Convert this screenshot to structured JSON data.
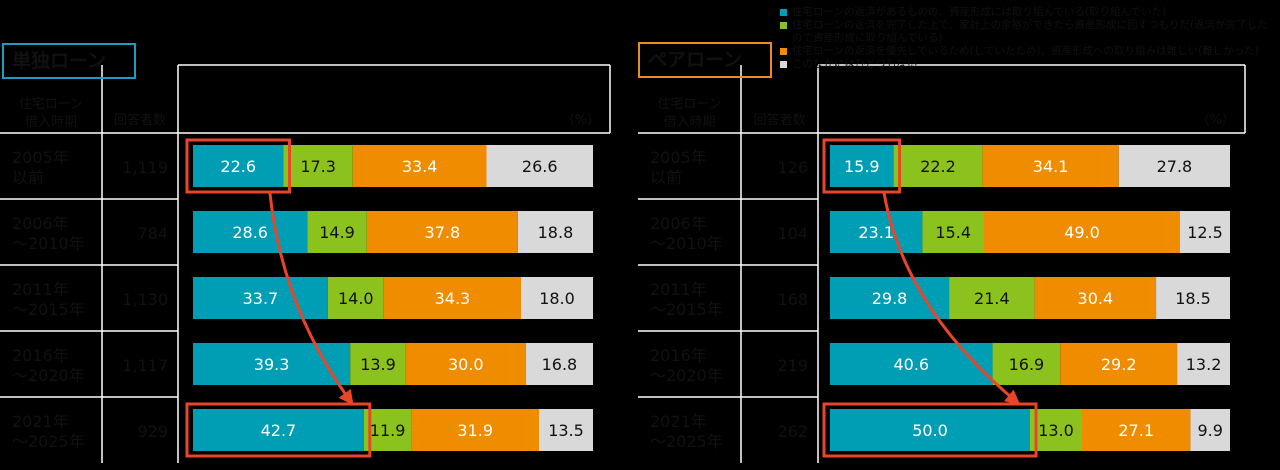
{
  "colors": {
    "s1": "#009eb5",
    "s2": "#8cc21e",
    "s3": "#f08c00",
    "s4": "#d9d9d9",
    "highlight": "#e8452a",
    "label_text": "#111111",
    "table_line": "#ffffff"
  },
  "legend": {
    "items": [
      "住宅ローンの返済があるものの、資産形成には取り組んでいる(取り組んでいた)",
      "住宅ローンの返済を完了した上で、家計上の余裕ができたら資産形成に回すつもりだ(返済が完了したので資産形成に取り組んでいる)",
      "住宅ローンの返済を優先しているため(していたため)、資産形成への取り組みは難しい(難しかった)",
      "このなかにはひとつもない"
    ]
  },
  "chart_data": [
    {
      "type": "bar",
      "orientation": "horizontal",
      "stacked": true,
      "title": "単独ローン",
      "header_col1": "住宅ローン借入時期",
      "header_col2": "回答者数",
      "unit": "（%）",
      "categories": [
        "2005年以前",
        "2006年～2010年",
        "2011年～2015年",
        "2016年～2020年",
        "2021年～2025年"
      ],
      "respondents": [
        "1,119",
        "784",
        "1,130",
        "1,117",
        "929"
      ],
      "series": [
        {
          "values": [
            22.6,
            28.6,
            33.7,
            39.3,
            42.7
          ]
        },
        {
          "values": [
            17.3,
            14.9,
            14.0,
            13.9,
            11.9
          ]
        },
        {
          "values": [
            33.4,
            37.8,
            34.3,
            30.0,
            31.9
          ]
        },
        {
          "values": [
            26.6,
            18.8,
            18.0,
            16.8,
            13.5
          ]
        }
      ],
      "xlim": [
        0,
        100
      ],
      "highlight": {
        "series": 0,
        "from_row": 0,
        "to_row": 4
      }
    },
    {
      "type": "bar",
      "orientation": "horizontal",
      "stacked": true,
      "title": "ペアローン",
      "header_col1": "住宅ローン借入時期",
      "header_col2": "回答者数",
      "unit": "（%）",
      "categories": [
        "2005年以前",
        "2006年～2010年",
        "2011年～2015年",
        "2016年～2020年",
        "2021年～2025年"
      ],
      "respondents": [
        "126",
        "104",
        "168",
        "219",
        "262"
      ],
      "series": [
        {
          "values": [
            15.9,
            23.1,
            29.8,
            40.6,
            50.0
          ]
        },
        {
          "values": [
            22.2,
            15.4,
            21.4,
            16.9,
            13.0
          ]
        },
        {
          "values": [
            34.1,
            49.0,
            30.4,
            29.2,
            27.1
          ]
        },
        {
          "values": [
            27.8,
            12.5,
            18.5,
            13.2,
            9.9
          ]
        }
      ],
      "xlim": [
        0,
        100
      ],
      "highlight": {
        "series": 0,
        "from_row": 0,
        "to_row": 4
      }
    }
  ]
}
